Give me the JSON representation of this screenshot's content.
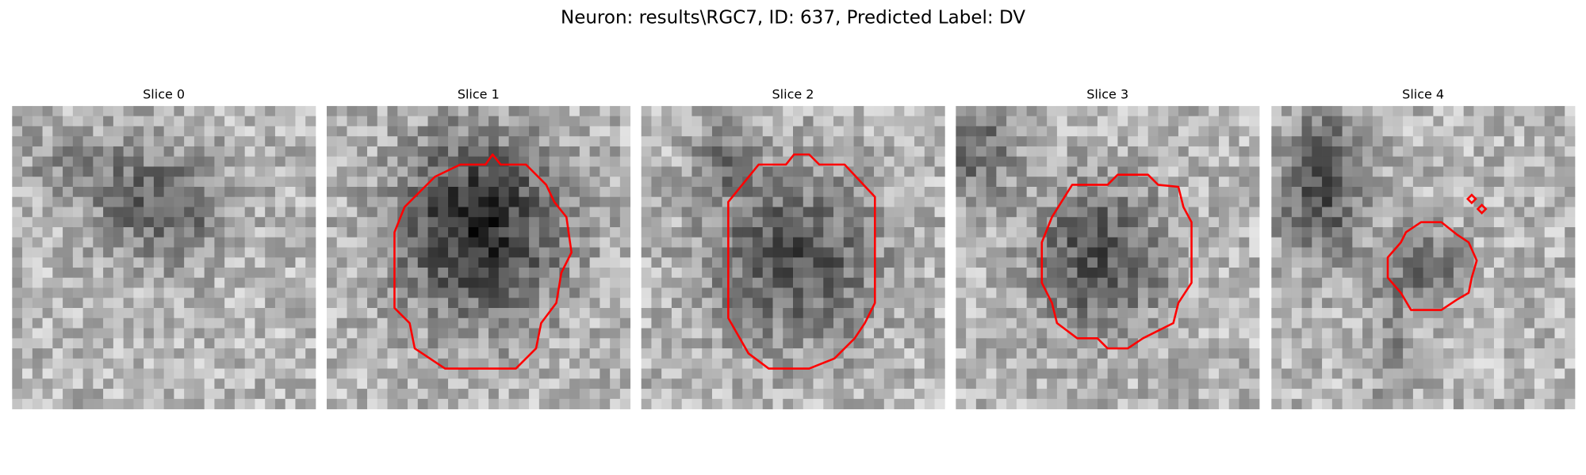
{
  "title": "Neuron: results\\RGC7, ID: 637, Predicted Label: DV",
  "panels": [
    {
      "title": "Slice 0"
    },
    {
      "title": "Slice 1"
    },
    {
      "title": "Slice 2"
    },
    {
      "title": "Slice 3"
    },
    {
      "title": "Slice 4"
    }
  ]
}
